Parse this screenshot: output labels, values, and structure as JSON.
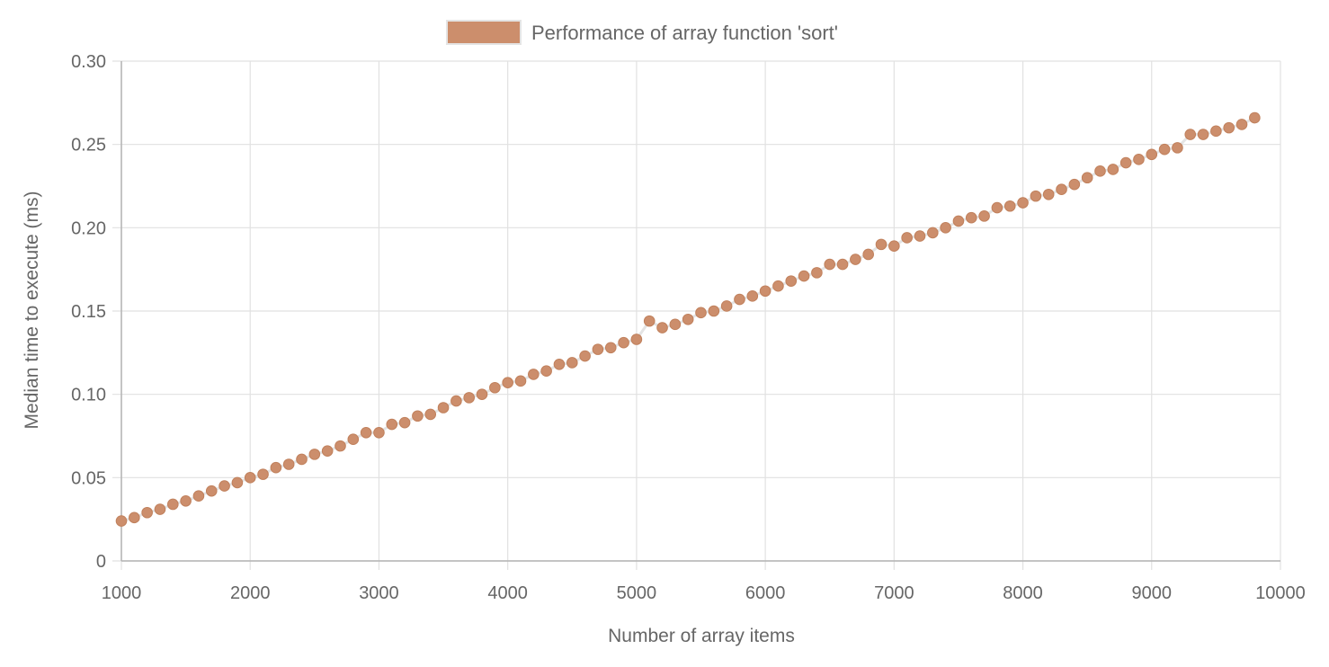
{
  "colors": {
    "point_fill": "#cc8e6c",
    "point_stroke": "#c0805c",
    "line": "#e4e4e4",
    "grid": "#e1e1e1",
    "text": "#666666"
  },
  "chart_data": {
    "type": "line",
    "legend": {
      "label": "Performance of array function 'sort'",
      "position": "top"
    },
    "xlabel": "Number of array items",
    "ylabel": "Median time to execute (ms)",
    "xlim": [
      1000,
      10000
    ],
    "ylim": [
      0,
      0.3
    ],
    "x_ticks": [
      "1000",
      "2000",
      "3000",
      "4000",
      "5000",
      "6000",
      "7000",
      "8000",
      "9000",
      "10000"
    ],
    "y_ticks": [
      "0",
      "0.05",
      "0.10",
      "0.15",
      "0.20",
      "0.25",
      "0.30"
    ],
    "grid": true,
    "series": [
      {
        "name": "Performance of array function 'sort'",
        "x": [
          1000,
          1100,
          1200,
          1300,
          1400,
          1500,
          1600,
          1700,
          1800,
          1900,
          2000,
          2100,
          2200,
          2300,
          2400,
          2500,
          2600,
          2700,
          2800,
          2900,
          3000,
          3100,
          3200,
          3300,
          3400,
          3500,
          3600,
          3700,
          3800,
          3900,
          4000,
          4100,
          4200,
          4300,
          4400,
          4500,
          4600,
          4700,
          4800,
          4900,
          5000,
          5100,
          5200,
          5300,
          5400,
          5500,
          5600,
          5700,
          5800,
          5900,
          6000,
          6100,
          6200,
          6300,
          6400,
          6500,
          6600,
          6700,
          6800,
          6900,
          7000,
          7100,
          7200,
          7300,
          7400,
          7500,
          7600,
          7700,
          7800,
          7900,
          8000,
          8100,
          8200,
          8300,
          8400,
          8500,
          8600,
          8700,
          8800,
          8900,
          9000,
          9100,
          9200,
          9300,
          9400,
          9500,
          9600,
          9700,
          9800
        ],
        "y": [
          0.024,
          0.026,
          0.029,
          0.031,
          0.034,
          0.036,
          0.039,
          0.042,
          0.045,
          0.047,
          0.05,
          0.052,
          0.056,
          0.058,
          0.061,
          0.064,
          0.066,
          0.069,
          0.073,
          0.077,
          0.077,
          0.082,
          0.083,
          0.087,
          0.088,
          0.092,
          0.096,
          0.098,
          0.1,
          0.104,
          0.107,
          0.108,
          0.112,
          0.114,
          0.118,
          0.119,
          0.123,
          0.127,
          0.128,
          0.131,
          0.133,
          0.144,
          0.14,
          0.142,
          0.145,
          0.149,
          0.15,
          0.153,
          0.157,
          0.159,
          0.162,
          0.165,
          0.168,
          0.171,
          0.173,
          0.178,
          0.178,
          0.181,
          0.184,
          0.19,
          0.189,
          0.194,
          0.195,
          0.197,
          0.2,
          0.204,
          0.206,
          0.207,
          0.212,
          0.213,
          0.215,
          0.219,
          0.22,
          0.223,
          0.226,
          0.23,
          0.234,
          0.235,
          0.239,
          0.241,
          0.244,
          0.247,
          0.248,
          0.256,
          0.256,
          0.258,
          0.26,
          0.262,
          0.266
        ]
      }
    ]
  }
}
